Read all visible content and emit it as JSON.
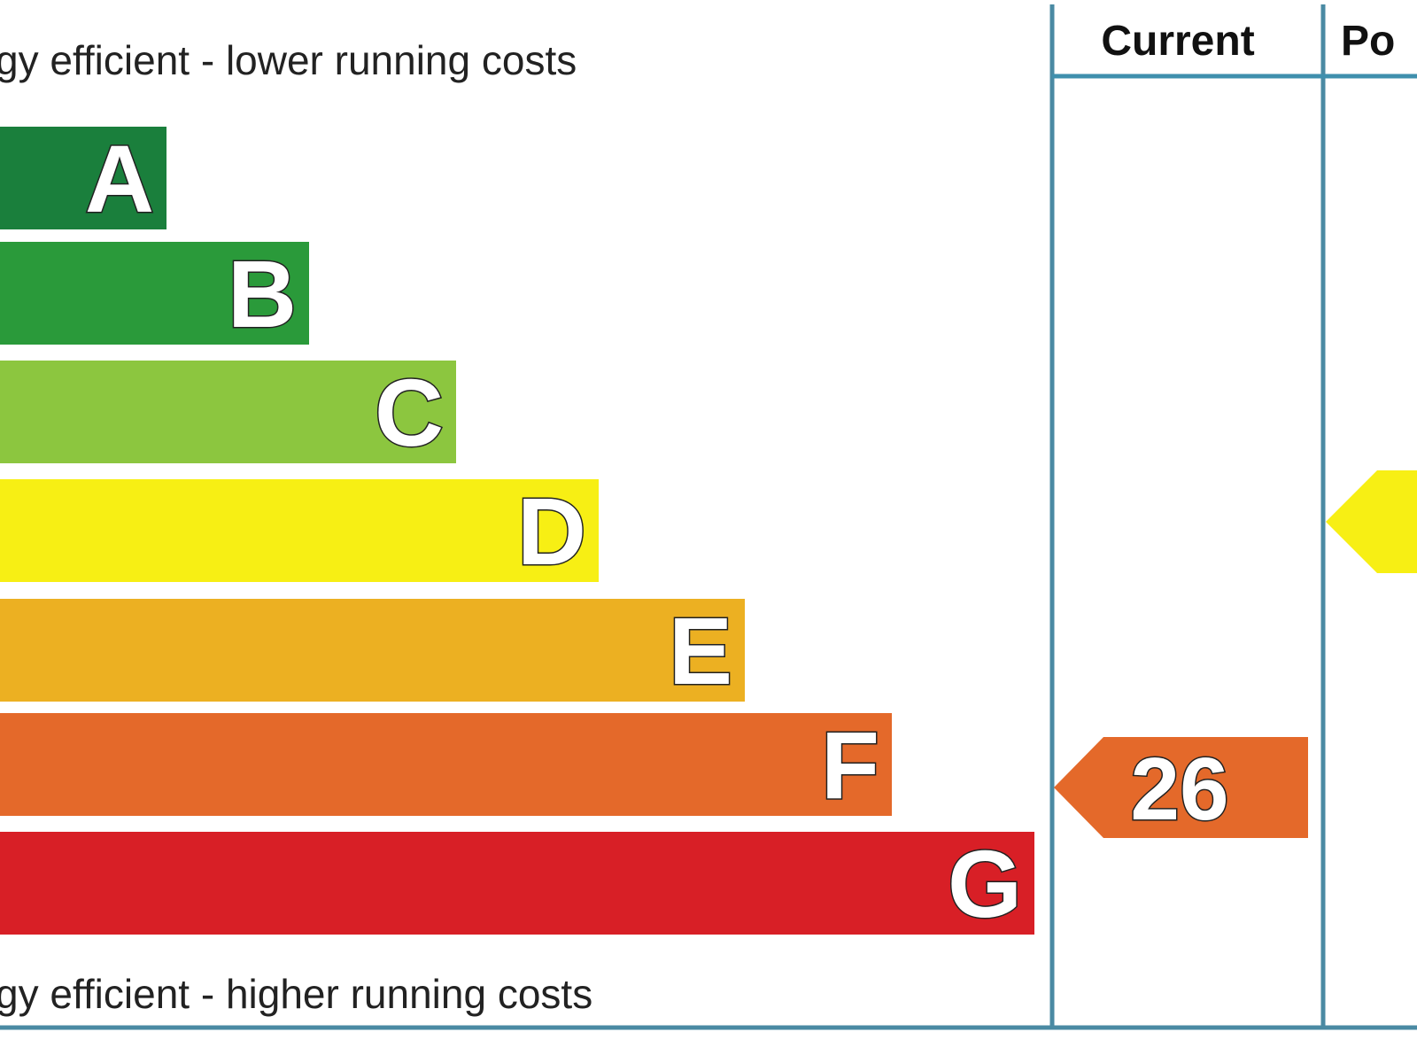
{
  "chart_data": {
    "type": "bar",
    "top_caption": "gy efficient - lower running costs",
    "bottom_caption": "gy efficient - higher running costs",
    "categories": [
      "A",
      "B",
      "C",
      "D",
      "E",
      "F",
      "G"
    ],
    "colors": [
      "#1a7f3c",
      "#2a9a3a",
      "#8cc63f",
      "#f7ef14",
      "#ecb022",
      "#e4692a",
      "#d81f26"
    ],
    "columns": {
      "current": "Current",
      "potential": "Po"
    },
    "current": {
      "value": "26",
      "band": "F",
      "color": "#e4692a"
    },
    "potential": {
      "band": "D",
      "color": "#f7ef14"
    }
  }
}
